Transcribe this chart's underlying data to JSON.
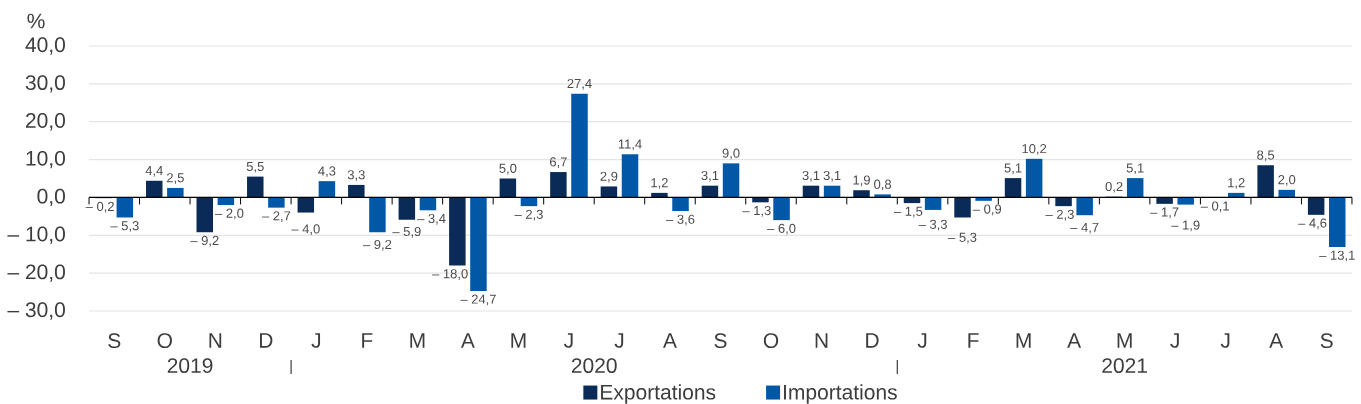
{
  "chart_data": {
    "type": "bar",
    "ylabel": "%",
    "categories": [
      "S",
      "O",
      "N",
      "D",
      "J",
      "F",
      "M",
      "A",
      "M",
      "J",
      "J",
      "A",
      "S",
      "O",
      "N",
      "D",
      "J",
      "F",
      "M",
      "A",
      "M",
      "J",
      "J",
      "A",
      "S"
    ],
    "series": [
      {
        "name": "Exportations",
        "color": "#0a2b57",
        "values": [
          -0.2,
          4.4,
          -9.2,
          5.5,
          -4.0,
          3.3,
          -5.9,
          -18.0,
          5.0,
          6.7,
          2.9,
          1.2,
          3.1,
          -1.3,
          3.1,
          1.9,
          -1.5,
          -5.3,
          5.1,
          -2.3,
          0.2,
          -1.7,
          -0.1,
          8.5,
          -4.6
        ],
        "value_labels": [
          "– 0,2",
          "4,4",
          "– 9,2",
          "5,5",
          "– 4,0",
          "3,3",
          "– 5,9",
          "– 18,0",
          "5,0",
          "6,7",
          "2,9",
          "1,2",
          "3,1",
          "– 1,3",
          "3,1",
          "1,9",
          "– 1,5",
          "– 5,3",
          "5,1",
          "– 2,3",
          "0,2",
          "– 1,7",
          "– 0,1",
          "8,5",
          "– 4,6"
        ]
      },
      {
        "name": "Importations",
        "color": "#0058a6",
        "values": [
          -5.3,
          2.5,
          -2.0,
          -2.7,
          4.3,
          -9.2,
          -3.4,
          -24.7,
          -2.3,
          27.4,
          11.4,
          -3.6,
          9.0,
          -6.0,
          3.1,
          0.8,
          -3.3,
          -0.9,
          10.2,
          -4.7,
          5.1,
          -1.9,
          1.2,
          2.0,
          -13.1
        ],
        "value_labels": [
          "– 5,3",
          "2,5",
          "– 2,0",
          "– 2,7",
          "4,3",
          "– 9,2",
          "– 3,4",
          "– 24,7",
          "– 2,3",
          "27,4",
          "11,4",
          "– 3,6",
          "9,0",
          "– 6,0",
          "3,1",
          "0,8",
          "– 3,3",
          "– 0,9",
          "10,2",
          "– 4,7",
          "5,1",
          "– 1,9",
          "1,2",
          "2,0",
          "– 13,1"
        ]
      }
    ],
    "ylim": [
      -30,
      40
    ],
    "yticks": [
      {
        "value": -30,
        "label": "– 30,0"
      },
      {
        "value": -20,
        "label": "– 20,0"
      },
      {
        "value": -10,
        "label": "– 10,0"
      },
      {
        "value": 0,
        "label": "0,0"
      },
      {
        "value": 10,
        "label": "10,0"
      },
      {
        "value": 20,
        "label": "20,0"
      },
      {
        "value": 30,
        "label": "30,0"
      },
      {
        "value": 40,
        "label": "40,0"
      }
    ],
    "grid": "y",
    "legend": "bottom",
    "annotations": [
      "2019",
      "2020",
      "2021"
    ]
  }
}
